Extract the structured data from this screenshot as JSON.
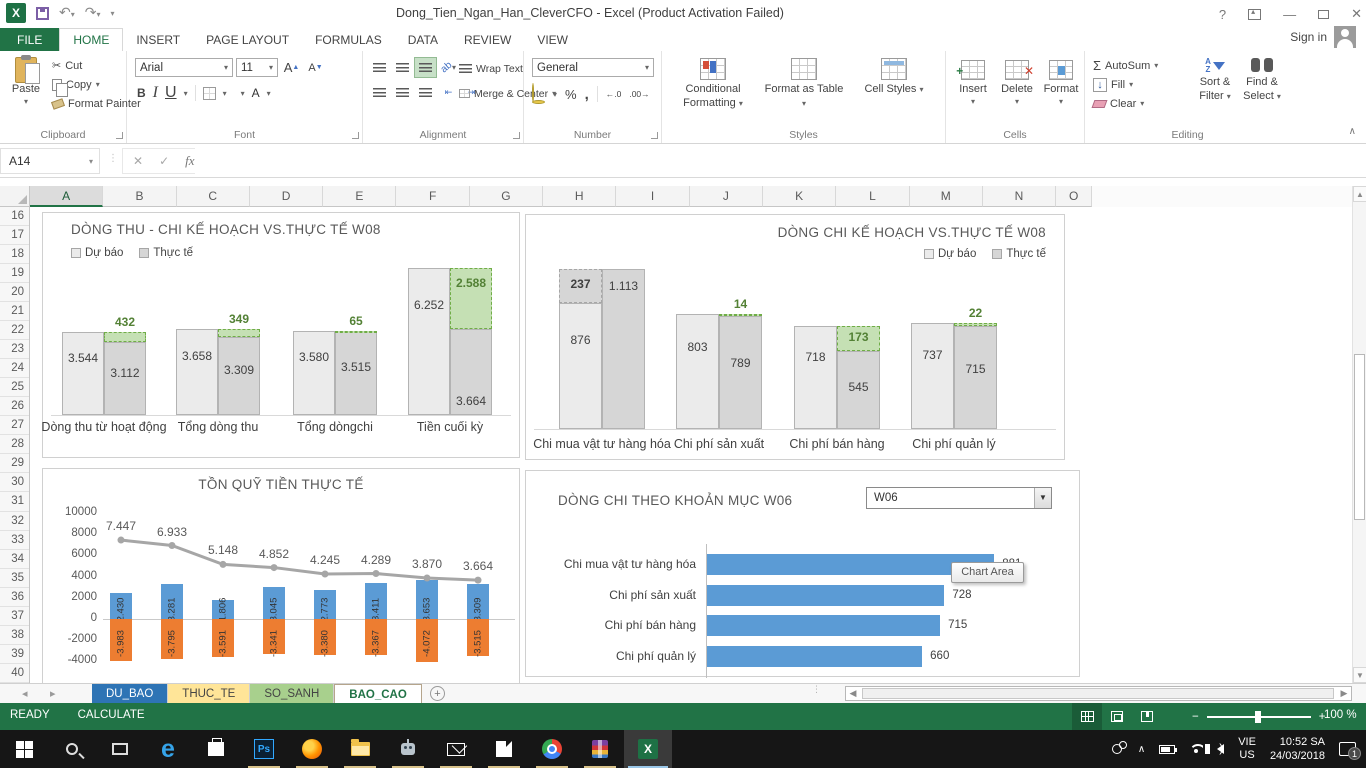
{
  "window": {
    "title": "Dong_Tien_Ngan_Han_CleverCFO - Excel (Product Activation Failed)",
    "sign_in": "Sign in"
  },
  "ribbon": {
    "tabs": [
      "FILE",
      "HOME",
      "INSERT",
      "PAGE LAYOUT",
      "FORMULAS",
      "DATA",
      "REVIEW",
      "VIEW"
    ],
    "active_tab": "HOME",
    "clipboard": {
      "group": "Clipboard",
      "paste": "Paste",
      "cut": "Cut",
      "copy": "Copy",
      "format_painter": "Format Painter"
    },
    "font": {
      "group": "Font",
      "name": "Arial",
      "size": "11"
    },
    "alignment": {
      "group": "Alignment",
      "wrap": "Wrap Text",
      "merge": "Merge & Center"
    },
    "number": {
      "group": "Number",
      "format": "General"
    },
    "styles": {
      "group": "Styles",
      "conditional": "Conditional Formatting",
      "format_table": "Format as Table",
      "cell_styles": "Cell Styles"
    },
    "cells": {
      "group": "Cells",
      "insert": "Insert",
      "delete": "Delete",
      "format": "Format"
    },
    "editing": {
      "group": "Editing",
      "autosum": "AutoSum",
      "fill": "Fill",
      "clear": "Clear",
      "sort": "Sort & Filter",
      "find": "Find & Select"
    }
  },
  "formula_bar": {
    "name_box": "A14",
    "fx": "fx"
  },
  "grid": {
    "columns": [
      "A",
      "B",
      "C",
      "D",
      "E",
      "F",
      "G",
      "H",
      "I",
      "J",
      "K",
      "L",
      "M",
      "N",
      "O"
    ],
    "selected_column": "A",
    "row_start": 16,
    "row_end": 40
  },
  "chart_data": [
    {
      "type": "bar",
      "title": "DÒNG THU - CHI KẾ HOẠCH VS.THỰC TẾ W08",
      "legend": [
        "Dự báo",
        "Thực tế"
      ],
      "legend_position": "top-left",
      "categories": [
        "Dòng thu từ hoạt động",
        "Tổng dòng thu",
        "Tổng dòngchi",
        "Tiền cuối kỳ"
      ],
      "series": [
        {
          "name": "Dự báo",
          "values": [
            3544,
            3658,
            3580,
            6252
          ],
          "labels": [
            "3.544",
            "3.658",
            "3.580",
            "6.252"
          ]
        },
        {
          "name": "Thực tế",
          "values": [
            3112,
            3309,
            3515,
            3664
          ],
          "labels": [
            "3.112",
            "3.309",
            "3.515",
            "3.664"
          ]
        }
      ],
      "diff": {
        "values": [
          432,
          349,
          65,
          2588
        ],
        "labels": [
          "432",
          "349",
          "65",
          "2.588"
        ],
        "overrun_index": -1
      }
    },
    {
      "type": "bar",
      "title": "DÒNG CHI KẾ HOẠCH VS.THỰC TẾ W08",
      "legend": [
        "Dự báo",
        "Thực tế"
      ],
      "legend_position": "top-right",
      "categories": [
        "Chi mua vật tư hàng hóa",
        "Chi phí sản xuất",
        "Chi phí bán hàng",
        "Chi phí quản lý"
      ],
      "series": [
        {
          "name": "Dự báo",
          "values": [
            876,
            803,
            718,
            737
          ],
          "labels": [
            "876",
            "803",
            "718",
            "737"
          ]
        },
        {
          "name": "Thực tế",
          "values": [
            1113,
            789,
            545,
            715
          ],
          "labels": [
            "1.113",
            "789",
            "545",
            "715"
          ]
        }
      ],
      "diff": {
        "values": [
          237,
          14,
          173,
          22
        ],
        "labels": [
          "237",
          "14",
          "173",
          "22"
        ],
        "overrun_index": 0
      }
    },
    {
      "type": "combo",
      "title": "TỒN QUỸ TIỀN THỰC TẾ",
      "ylim": [
        -4000,
        10000
      ],
      "y_ticks": [
        "10000",
        "8000",
        "6000",
        "4000",
        "2000",
        "0",
        "-2000",
        "-4000"
      ],
      "line": {
        "values": [
          7447,
          6933,
          5148,
          4852,
          4245,
          4289,
          3870,
          3664
        ],
        "labels": [
          "7.447",
          "6.933",
          "5.148",
          "4.852",
          "4.245",
          "4.289",
          "3.870",
          "3.664"
        ]
      },
      "bars_pos": {
        "values": [
          2430,
          3281,
          1806,
          3045,
          2773,
          3411,
          3653,
          3309
        ],
        "labels": [
          "2.430",
          "3.281",
          "1.806",
          "3.045",
          "2.773",
          "3.411",
          "3.653",
          "3.309"
        ]
      },
      "bars_neg": {
        "values": [
          -3983,
          -3795,
          -3591,
          -3341,
          -3380,
          -3367,
          -4072,
          -3515
        ],
        "labels": [
          "-3.983",
          "-3.795",
          "-3.591",
          "-3.341",
          "-3.380",
          "-3.367",
          "-4.072",
          "-3.515"
        ]
      }
    },
    {
      "type": "hbar",
      "title": "DÒNG CHI THEO KHOẢN MỤC W06",
      "selector": "W06",
      "categories": [
        "Chi mua vật tư hàng hóa",
        "Chi phí sản xuất",
        "Chi phí bán hàng",
        "Chi phí quản lý"
      ],
      "values": [
        881,
        728,
        715,
        660
      ],
      "labels": [
        "881",
        "728",
        "715",
        "660"
      ],
      "tooltip": "Chart Area"
    }
  ],
  "sheet_tabs": [
    {
      "label": "DU_BAO",
      "fill": "#2e74b5",
      "text": "#ffffff",
      "active": false
    },
    {
      "label": "THUC_TE",
      "fill": "#ffe598",
      "text": "#444444",
      "active": false
    },
    {
      "label": "SO_SANH",
      "fill": "#a8d08d",
      "text": "#444444",
      "active": false
    },
    {
      "label": "BAO_CAO",
      "fill": "#ffffff",
      "text": "#217346",
      "active": true
    }
  ],
  "status_bar": {
    "ready": "READY",
    "calculate": "CALCULATE",
    "zoom_level": "100 %"
  },
  "taskbar": {
    "lang_line1": "VIE",
    "lang_line2": "US",
    "time": "10:52 SA",
    "date": "24/03/2018",
    "badge": "1"
  },
  "icons": {
    "dropdown": "▾",
    "help": "?",
    "min": "—",
    "close": "✕",
    "undo": "↶",
    "redo": "↷",
    "scissors": "✂",
    "check": "✓",
    "cancel": "✕",
    "sigma": "Σ",
    "fill_down": "↓",
    "chev_up": "∧",
    "nav_left": "◂",
    "nav_right": "▸",
    "new_sheet": "+",
    "bold": "B",
    "italic": "I",
    "underline": "U",
    "font_big": "A",
    "font_small": "A",
    "font_color_a": "A",
    "percent": "%",
    "comma": ",",
    "inc_dec": "←.0",
    "dec_dec": ".00→",
    "letter_a": "A",
    "letter_z": "Z",
    "orient": "ab",
    "minus": "−",
    "plus": "+",
    "edge": "e",
    "photoshop": "Ps",
    "excel_logo": "X"
  },
  "colors": {
    "excel_green": "#217346",
    "forecast_fill": "#ebebeb",
    "actual_fill": "#d6d6d6",
    "bar_border": "#b3b3b3",
    "diff_green_fill": "#c5e0b4",
    "diff_green_line": "#70ad47",
    "diff_green_text": "#538135",
    "overrun_fill": "#d6d6d6",
    "overrun_line": "#a6a6a6",
    "overrun_text": "#404040",
    "bar_blue": "#5b9bd5",
    "bar_orange": "#ed7d31",
    "line_gray": "#a6a6a6"
  }
}
